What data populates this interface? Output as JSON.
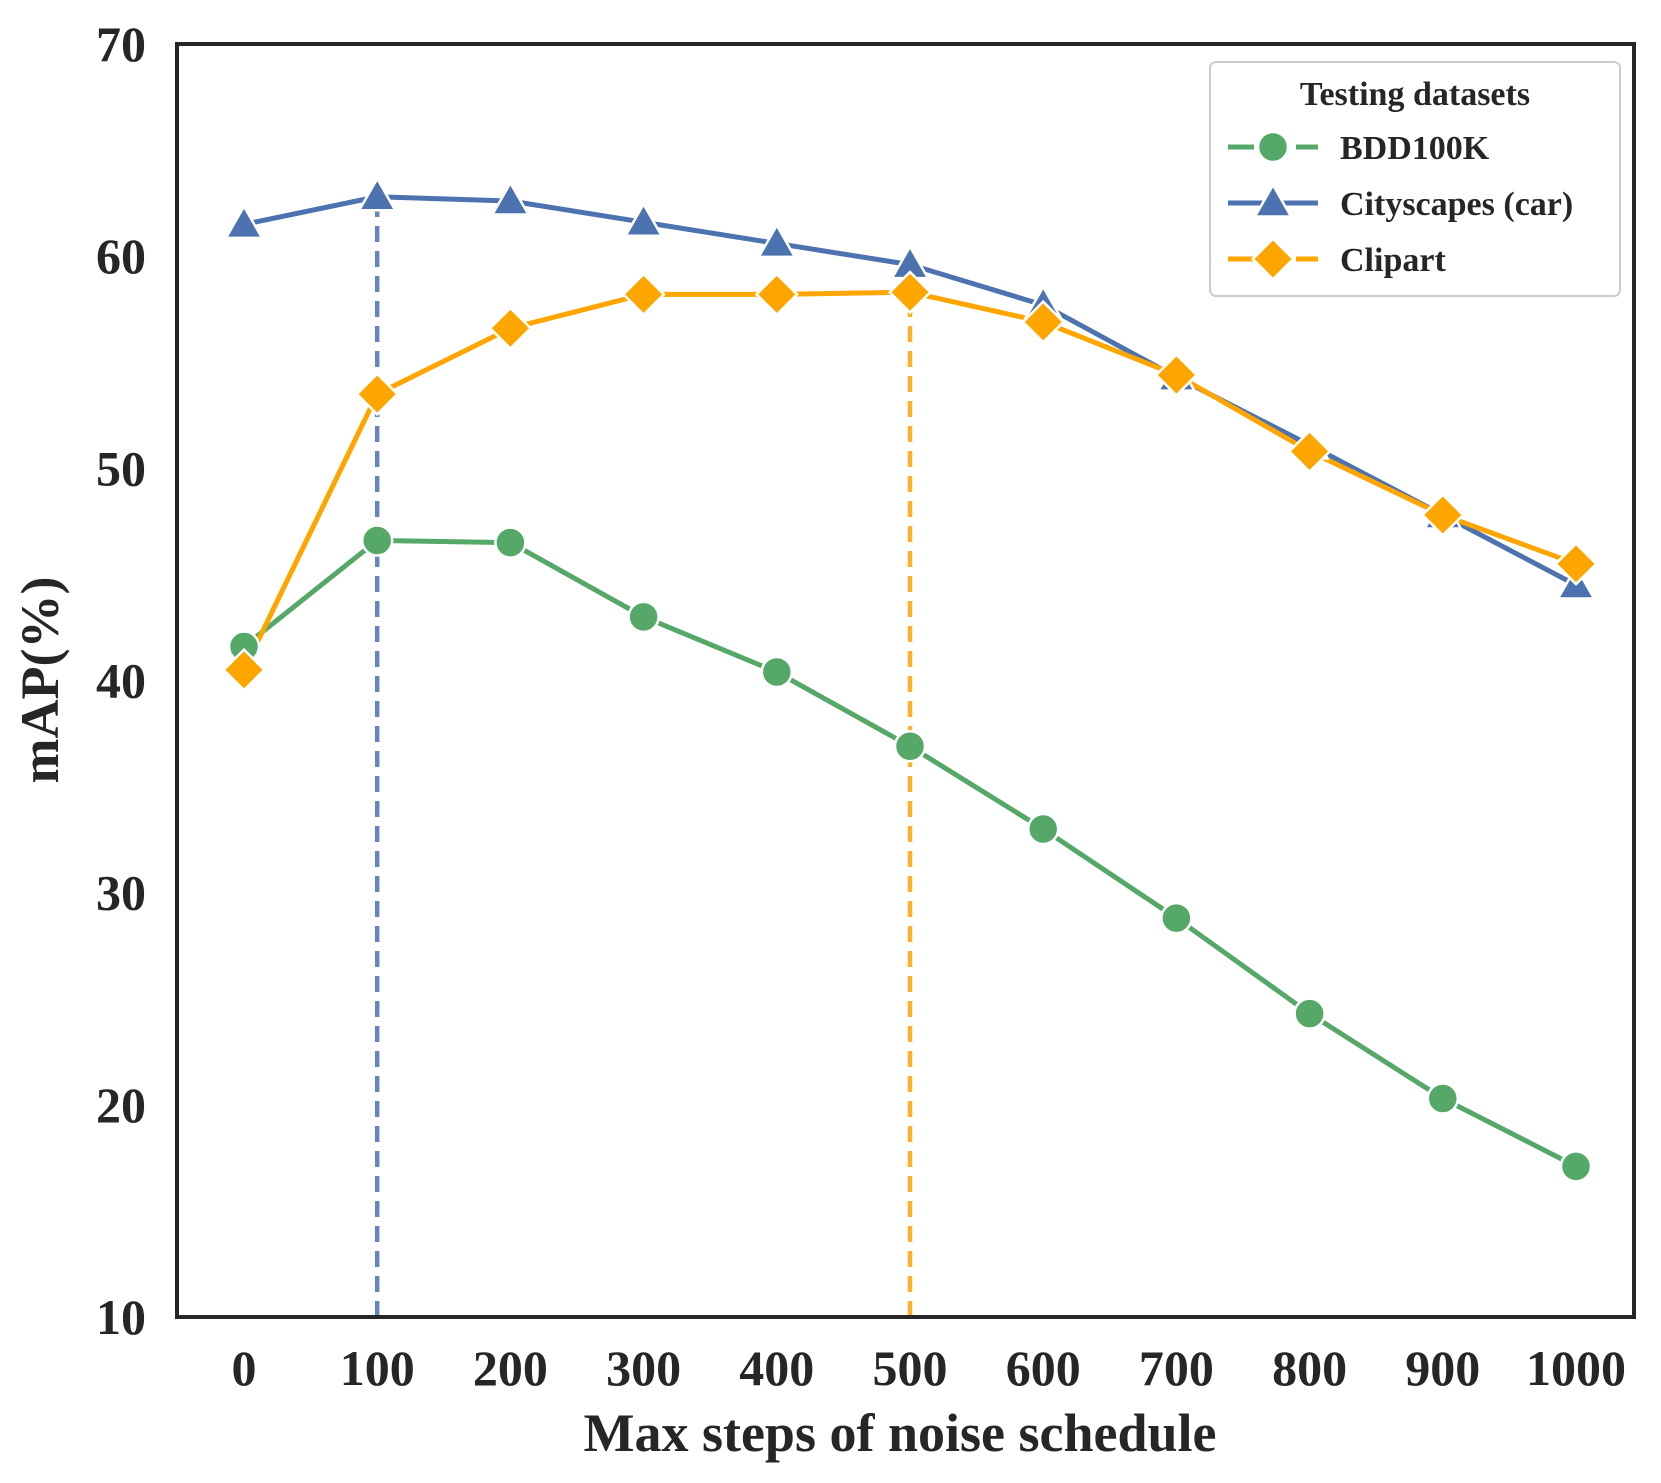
{
  "chart_data": {
    "type": "line",
    "title": "",
    "xlabel": "Max steps of noise schedule",
    "ylabel": "mAP(%)",
    "x": [
      0,
      100,
      200,
      300,
      400,
      500,
      600,
      700,
      800,
      900,
      1000
    ],
    "x_tick_labels": [
      "0",
      "100",
      "200",
      "300",
      "400",
      "500",
      "600",
      "700",
      "800",
      "900",
      "1000"
    ],
    "y_tick_labels": [
      "10",
      "20",
      "30",
      "40",
      "50",
      "60",
      "70"
    ],
    "ylim": [
      10,
      70
    ],
    "grid": false,
    "legend": {
      "title": "Testing datasets",
      "placement": "top-right"
    },
    "series": [
      {
        "name": "BDD100K",
        "color": "#55a868",
        "marker": "circle",
        "values": [
          41.6,
          46.6,
          46.5,
          43.0,
          40.4,
          36.9,
          33.0,
          28.8,
          24.3,
          20.3,
          17.1
        ]
      },
      {
        "name": "Cityscapes (car)",
        "color": "#4c72b0",
        "marker": "triangle",
        "values": [
          61.5,
          62.8,
          62.6,
          61.6,
          60.6,
          59.6,
          57.7,
          54.3,
          51.1,
          47.8,
          44.5
        ]
      },
      {
        "name": "Clipart",
        "color": "#ffa500",
        "marker": "diamond",
        "values": [
          40.5,
          53.5,
          56.6,
          58.2,
          58.2,
          58.3,
          56.9,
          54.4,
          50.8,
          47.8,
          45.5
        ]
      }
    ],
    "reference_lines": [
      {
        "x": 100,
        "from": 10,
        "to": 63.5,
        "color": "#4c72b0",
        "style": "dashed"
      },
      {
        "x": 500,
        "from": 10,
        "to": 58.3,
        "color": "#ffa500",
        "style": "dashed"
      }
    ]
  }
}
